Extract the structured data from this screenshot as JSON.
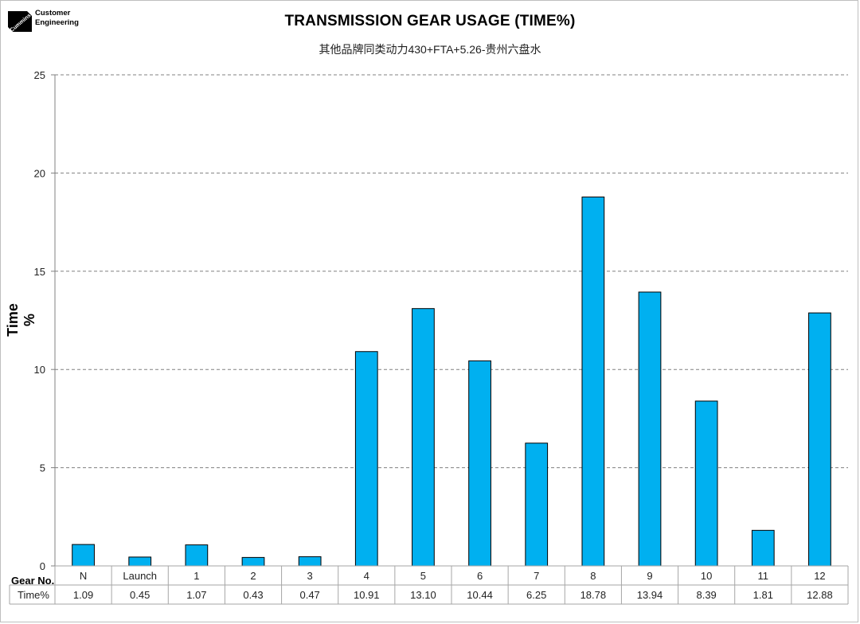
{
  "header": {
    "logo_lines": [
      "Customer",
      "Engineering"
    ]
  },
  "chart_data": {
    "type": "bar",
    "title": "TRANSMISSION GEAR USAGE (TIME%)",
    "subtitle": "其他品牌同类动力430+FTA+5.26-贵州六盘水",
    "ylabel": "Time %",
    "ylim": [
      0,
      25
    ],
    "yticks": [
      0,
      5,
      10,
      15,
      20,
      25
    ],
    "grid": true,
    "bar_color": "#00b0f0",
    "table_header_x": "Gear No.",
    "table_header_value": "Time%",
    "categories": [
      "N",
      "Launch",
      "1",
      "2",
      "3",
      "4",
      "5",
      "6",
      "7",
      "8",
      "9",
      "10",
      "11",
      "12"
    ],
    "values": [
      1.09,
      0.45,
      1.07,
      0.43,
      0.47,
      10.91,
      13.1,
      10.44,
      6.25,
      18.78,
      13.94,
      8.39,
      1.81,
      12.88
    ],
    "value_labels": [
      "1.09",
      "0.45",
      "1.07",
      "0.43",
      "0.47",
      "10.91",
      "13.10",
      "10.44",
      "6.25",
      "18.78",
      "13.94",
      "8.39",
      "1.81",
      "12.88"
    ]
  }
}
